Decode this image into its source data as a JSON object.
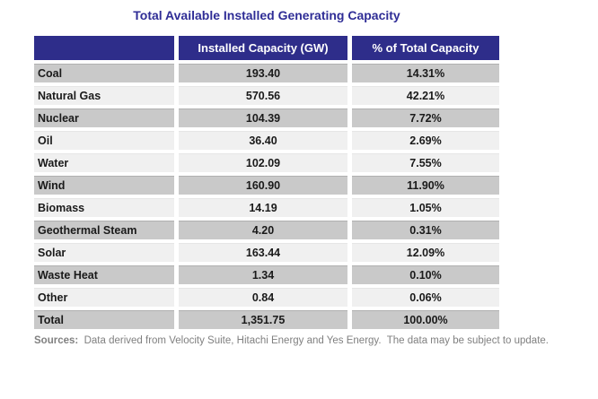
{
  "title": "Total Available Installed Generating Capacity",
  "table": {
    "columns": [
      "",
      "Installed Capacity (GW)",
      "% of Total Capacity"
    ],
    "rows": [
      {
        "source": "Coal",
        "capacity_gw": "193.40",
        "pct_of_total": "14.31%",
        "shade": "gray"
      },
      {
        "source": "Natural Gas",
        "capacity_gw": "570.56",
        "pct_of_total": "42.21%",
        "shade": "light"
      },
      {
        "source": "Nuclear",
        "capacity_gw": "104.39",
        "pct_of_total": "7.72%",
        "shade": "gray"
      },
      {
        "source": "Oil",
        "capacity_gw": "36.40",
        "pct_of_total": "2.69%",
        "shade": "light"
      },
      {
        "source": "Water",
        "capacity_gw": "102.09",
        "pct_of_total": "7.55%",
        "shade": "light"
      },
      {
        "source": "Wind",
        "capacity_gw": "160.90",
        "pct_of_total": "11.90%",
        "shade": "gray"
      },
      {
        "source": "Biomass",
        "capacity_gw": "14.19",
        "pct_of_total": "1.05%",
        "shade": "light"
      },
      {
        "source": "Geothermal Steam",
        "capacity_gw": "4.20",
        "pct_of_total": "0.31%",
        "shade": "gray"
      },
      {
        "source": "Solar",
        "capacity_gw": "163.44",
        "pct_of_total": "12.09%",
        "shade": "light"
      },
      {
        "source": "Waste Heat",
        "capacity_gw": "1.34",
        "pct_of_total": "0.10%",
        "shade": "gray"
      },
      {
        "source": "Other",
        "capacity_gw": "0.84",
        "pct_of_total": "0.06%",
        "shade": "light"
      },
      {
        "source": "Total",
        "capacity_gw": "1,351.75",
        "pct_of_total": "100.00%",
        "shade": "gray"
      }
    ]
  },
  "footer": {
    "label": "Sources:",
    "text": "  Data derived from Velocity Suite, Hitachi Energy and Yes Energy.  The data may be subject to update."
  },
  "colors": {
    "title_text": "#2F2D96",
    "header_bg": "#2E2D8A",
    "header_text": "#FFFFFF",
    "row_gray": "#C9C9C9",
    "row_light": "#F0F0F0",
    "body_text": "#1A1A1A",
    "footer_text": "#808080"
  },
  "chart_data": {
    "type": "table",
    "title": "Total Available Installed Generating Capacity",
    "columns": [
      "",
      "Installed Capacity (GW)",
      "% of Total Capacity"
    ],
    "categories": [
      "Coal",
      "Natural Gas",
      "Nuclear",
      "Oil",
      "Water",
      "Wind",
      "Biomass",
      "Geothermal Steam",
      "Solar",
      "Waste Heat",
      "Other"
    ],
    "series": [
      {
        "name": "Installed Capacity (GW)",
        "values": [
          193.4,
          570.56,
          104.39,
          36.4,
          102.09,
          160.9,
          14.19,
          4.2,
          163.44,
          1.34,
          0.84
        ]
      },
      {
        "name": "% of Total Capacity",
        "values": [
          14.31,
          42.21,
          7.72,
          2.69,
          7.55,
          11.9,
          1.05,
          0.31,
          12.09,
          0.1,
          0.06
        ]
      }
    ],
    "total_row": {
      "label": "Total",
      "installed_capacity_gw": 1351.75,
      "pct_of_total": 100.0
    },
    "source_note": "Sources: Data derived from Velocity Suite, Hitachi Energy and Yes Energy. The data may be subject to update."
  }
}
